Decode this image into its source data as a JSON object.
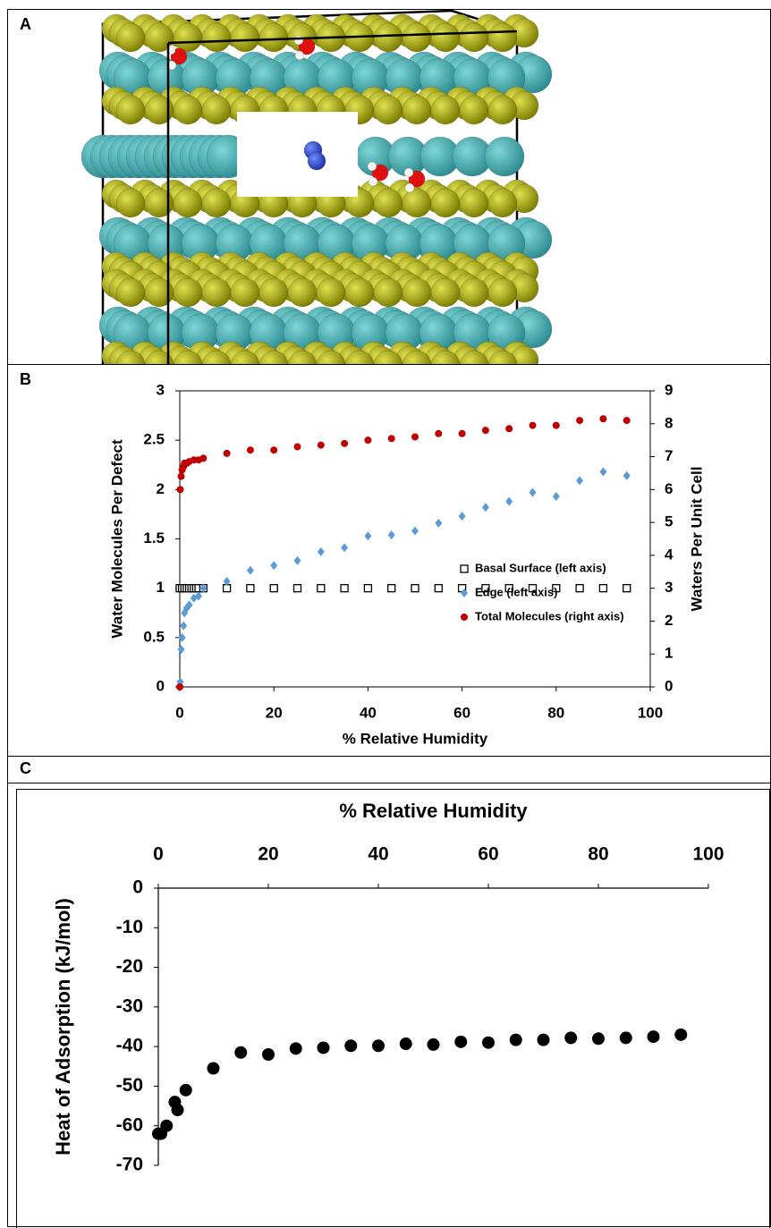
{
  "panel_labels": [
    "A",
    "B",
    "C"
  ],
  "chart_data": [
    {
      "type": "scatter",
      "frame": "box",
      "xlabel": "% Relative Humidity",
      "ylabel": "Water Molecules Per Defect",
      "y2label": "Waters Per Unit Cell",
      "xlim": [
        0,
        100
      ],
      "xticks": [
        0,
        20,
        40,
        60,
        80,
        100
      ],
      "ylim": [
        0,
        3
      ],
      "yticks": [
        0,
        0.5,
        1,
        1.5,
        2,
        2.5,
        3
      ],
      "y2lim": [
        0,
        9
      ],
      "y2ticks": [
        0,
        1,
        2,
        3,
        4,
        5,
        6,
        7,
        8,
        9
      ],
      "legend": "lower right",
      "series": [
        {
          "name": "Basal Surface (left axis)",
          "color": "#000000",
          "marker": "square-open",
          "x": [
            0,
            0.5,
            1,
            1.5,
            2,
            2.5,
            3,
            3.5,
            4,
            5,
            10,
            15,
            20,
            25,
            30,
            35,
            40,
            45,
            50,
            55,
            60,
            65,
            70,
            75,
            80,
            85,
            90,
            95
          ],
          "values": [
            1,
            1,
            1,
            1,
            1,
            1,
            1,
            1,
            1,
            1,
            1,
            1,
            1,
            1,
            1,
            1,
            1,
            1,
            1,
            1,
            1,
            1,
            1,
            1,
            1,
            1,
            1,
            1
          ]
        },
        {
          "name": "Edge (left axis)",
          "color": "#5b9bd5",
          "marker": "diamond",
          "x": [
            0,
            0.1,
            0.3,
            0.5,
            0.8,
            1,
            1.5,
            2,
            3,
            4,
            5,
            10,
            15,
            20,
            25,
            30,
            35,
            40,
            45,
            50,
            55,
            60,
            65,
            70,
            75,
            80,
            85,
            90,
            95
          ],
          "values": [
            0,
            0.05,
            0.38,
            0.5,
            0.62,
            0.75,
            0.8,
            0.83,
            0.9,
            0.92,
            1.0,
            1.07,
            1.18,
            1.23,
            1.28,
            1.37,
            1.41,
            1.53,
            1.54,
            1.58,
            1.66,
            1.73,
            1.82,
            1.88,
            1.97,
            1.93,
            2.09,
            2.18,
            2.14
          ]
        },
        {
          "name": "Total Molecules (right axis)",
          "color": "#c00000",
          "marker": "circle",
          "axis": "y2",
          "x": [
            0,
            0.1,
            0.3,
            0.5,
            0.8,
            1,
            1.5,
            2,
            3,
            4,
            5,
            10,
            15,
            20,
            25,
            30,
            35,
            40,
            45,
            50,
            55,
            60,
            65,
            70,
            75,
            80,
            85,
            90,
            95
          ],
          "values": [
            0,
            6.0,
            6.4,
            6.6,
            6.7,
            6.8,
            6.8,
            6.85,
            6.9,
            6.9,
            6.95,
            7.1,
            7.2,
            7.2,
            7.3,
            7.35,
            7.4,
            7.5,
            7.55,
            7.6,
            7.7,
            7.7,
            7.8,
            7.85,
            7.95,
            7.95,
            8.1,
            8.15,
            8.1
          ]
        }
      ]
    },
    {
      "type": "scatter",
      "frame": "axes",
      "x_axis_position": "top",
      "xlabel": "% Relative Humidity",
      "ylabel": "Heat of Adsorption (kJ/mol)",
      "xlim": [
        0,
        100
      ],
      "xticks": [
        0,
        20,
        40,
        60,
        80,
        100
      ],
      "ylim": [
        -70,
        0
      ],
      "yticks": [
        0,
        -10,
        -20,
        -30,
        -40,
        -50,
        -60,
        -70
      ],
      "series": [
        {
          "color": "#000000",
          "marker": "circle",
          "x": [
            0,
            0.5,
            1.5,
            3,
            3.5,
            5,
            10,
            15,
            20,
            25,
            30,
            35,
            40,
            45,
            50,
            55,
            60,
            65,
            70,
            75,
            80,
            85,
            90,
            95
          ],
          "values": [
            -62,
            -62,
            -60,
            -54,
            -56,
            -51,
            -45.5,
            -41.5,
            -42,
            -40.5,
            -40.3,
            -39.8,
            -39.8,
            -39.3,
            -39.5,
            -38.8,
            -39,
            -38.3,
            -38.3,
            -37.8,
            -38,
            -37.8,
            -37.5,
            -37
          ]
        }
      ]
    }
  ]
}
